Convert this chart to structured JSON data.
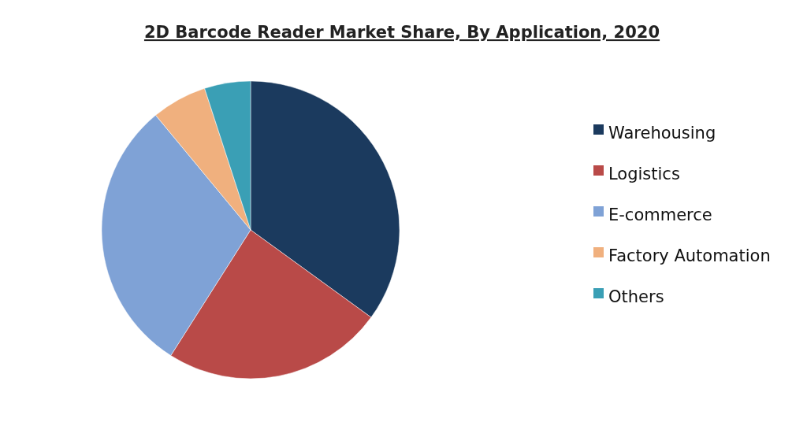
{
  "chart_data": {
    "type": "pie",
    "title": "2D Barcode Reader Market Share, By Application, 2020",
    "categories": [
      "Warehousing",
      "Logistics",
      "E-commerce",
      "Factory Automation",
      "Others"
    ],
    "values": [
      35,
      24,
      30,
      6,
      5
    ],
    "colors": [
      "#1b3a5e",
      "#b94a48",
      "#7fa2d6",
      "#f0b07e",
      "#3a9fb5"
    ],
    "legend": "right"
  }
}
